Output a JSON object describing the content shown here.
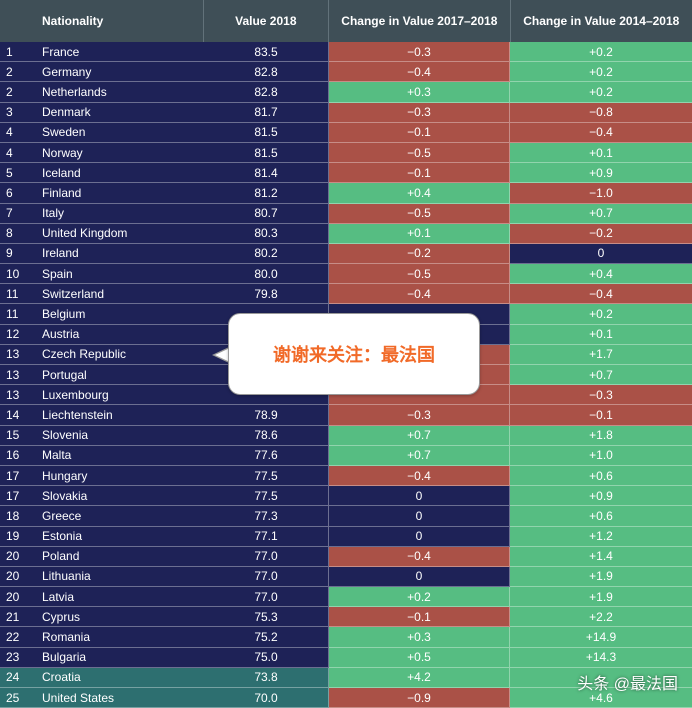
{
  "header": {
    "nationality": "Nationality",
    "value": "Value 2018",
    "change1": "Change in Value 2017–2018",
    "change2": "Change in Value 2014–2018"
  },
  "colors": {
    "positive": "#56bd82",
    "negative": "#aa5147",
    "neutral": "#1e2257",
    "header": "#3f4f57"
  },
  "rows": [
    {
      "rank": "1",
      "nationality": "France",
      "value": "83.5",
      "change1": "−0.3",
      "change2": "+0.2"
    },
    {
      "rank": "2",
      "nationality": "Germany",
      "value": "82.8",
      "change1": "−0.4",
      "change2": "+0.2"
    },
    {
      "rank": "2",
      "nationality": "Netherlands",
      "value": "82.8",
      "change1": "+0.3",
      "change2": "+0.2"
    },
    {
      "rank": "3",
      "nationality": "Denmark",
      "value": "81.7",
      "change1": "−0.3",
      "change2": "−0.8"
    },
    {
      "rank": "4",
      "nationality": "Sweden",
      "value": "81.5",
      "change1": "−0.1",
      "change2": "−0.4"
    },
    {
      "rank": "4",
      "nationality": "Norway",
      "value": "81.5",
      "change1": "−0.5",
      "change2": "+0.1"
    },
    {
      "rank": "5",
      "nationality": "Iceland",
      "value": "81.4",
      "change1": "−0.1",
      "change2": "+0.9"
    },
    {
      "rank": "6",
      "nationality": "Finland",
      "value": "81.2",
      "change1": "+0.4",
      "change2": "−1.0"
    },
    {
      "rank": "7",
      "nationality": "Italy",
      "value": "80.7",
      "change1": "−0.5",
      "change2": "+0.7"
    },
    {
      "rank": "8",
      "nationality": "United Kingdom",
      "value": "80.3",
      "change1": "+0.1",
      "change2": "−0.2"
    },
    {
      "rank": "9",
      "nationality": "Ireland",
      "value": "80.2",
      "change1": "−0.2",
      "change2": "0"
    },
    {
      "rank": "10",
      "nationality": "Spain",
      "value": "80.0",
      "change1": "−0.5",
      "change2": "+0.4"
    },
    {
      "rank": "11",
      "nationality": "Switzerland",
      "value": "79.8",
      "change1": "−0.4",
      "change2": "−0.4"
    },
    {
      "rank": "11",
      "nationality": "Belgium",
      "value": "",
      "change1": "",
      "change2": "+0.2"
    },
    {
      "rank": "12",
      "nationality": "Austria",
      "value": "",
      "change1": "",
      "change2": "+0.1"
    },
    {
      "rank": "13",
      "nationality": "Czech Republic",
      "value": "",
      "change1": "",
      "change2": "+1.7"
    },
    {
      "rank": "13",
      "nationality": "Portugal",
      "value": "",
      "change1": "",
      "change2": "+0.7"
    },
    {
      "rank": "13",
      "nationality": "Luxembourg",
      "value": "",
      "change1": "",
      "change2": "−0.3"
    },
    {
      "rank": "14",
      "nationality": "Liechtenstein",
      "value": "78.9",
      "change1": "−0.3",
      "change2": "−0.1"
    },
    {
      "rank": "15",
      "nationality": "Slovenia",
      "value": "78.6",
      "change1": "+0.7",
      "change2": "+1.8"
    },
    {
      "rank": "16",
      "nationality": "Malta",
      "value": "77.6",
      "change1": "+0.7",
      "change2": "+1.0"
    },
    {
      "rank": "17",
      "nationality": "Hungary",
      "value": "77.5",
      "change1": "−0.4",
      "change2": "+0.6"
    },
    {
      "rank": "17",
      "nationality": "Slovakia",
      "value": "77.5",
      "change1": "0",
      "change2": "+0.9"
    },
    {
      "rank": "18",
      "nationality": "Greece",
      "value": "77.3",
      "change1": "0",
      "change2": "+0.6"
    },
    {
      "rank": "19",
      "nationality": "Estonia",
      "value": "77.1",
      "change1": "0",
      "change2": "+1.2"
    },
    {
      "rank": "20",
      "nationality": "Poland",
      "value": "77.0",
      "change1": "−0.4",
      "change2": "+1.4"
    },
    {
      "rank": "20",
      "nationality": "Lithuania",
      "value": "77.0",
      "change1": "0",
      "change2": "+1.9"
    },
    {
      "rank": "20",
      "nationality": "Latvia",
      "value": "77.0",
      "change1": "+0.2",
      "change2": "+1.9"
    },
    {
      "rank": "21",
      "nationality": "Cyprus",
      "value": "75.3",
      "change1": "−0.1",
      "change2": "+2.2"
    },
    {
      "rank": "22",
      "nationality": "Romania",
      "value": "75.2",
      "change1": "+0.3",
      "change2": "+14.9"
    },
    {
      "rank": "23",
      "nationality": "Bulgaria",
      "value": "75.0",
      "change1": "+0.5",
      "change2": "+14.3"
    },
    {
      "rank": "24",
      "nationality": "Croatia",
      "value": "73.8",
      "change1": "+4.2",
      "change2": ""
    },
    {
      "rank": "25",
      "nationality": "United States",
      "value": "70.0",
      "change1": "−0.9",
      "change2": "+4.6"
    }
  ],
  "callout": {
    "text": "谢谢来关注：最法国"
  },
  "watermark": {
    "text": "头条 @最法国"
  }
}
